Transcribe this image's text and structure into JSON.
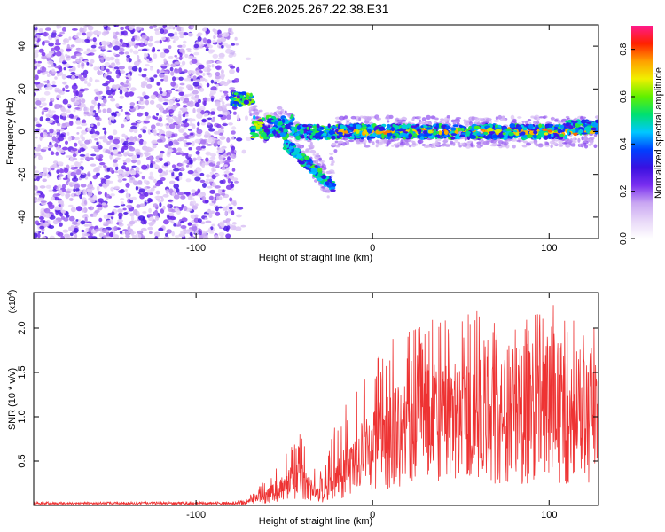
{
  "title": "C2E6.2025.267.22.38.E31",
  "chart_data": [
    {
      "type": "heatmap",
      "title": "C2E6.2025.267.22.38.E31",
      "xlabel": "Height of straight line (km)",
      "ylabel": "Frequency (Hz)",
      "xlim": [
        -192,
        128
      ],
      "ylim": [
        -50,
        50
      ],
      "xticks": [
        -100,
        0,
        100
      ],
      "yticks": [
        -40,
        -20,
        0,
        20,
        40
      ],
      "xtick_labels": [
        "-100",
        "0",
        "100"
      ],
      "ytick_labels": [
        "-40",
        "-20",
        "0",
        "20",
        "40"
      ],
      "noise_region_x": [
        -192,
        -78
      ],
      "signal_ridge": [
        {
          "x": -75,
          "freq": 15
        },
        {
          "x": -62,
          "freq": 2
        },
        {
          "x": -50,
          "freq": 5
        },
        {
          "x": -40,
          "freq": -5
        },
        {
          "x": -33,
          "freq": -15
        },
        {
          "x": -25,
          "freq": -25
        },
        {
          "x": -20,
          "freq": 0
        },
        {
          "x": 0,
          "freq": 0
        },
        {
          "x": 50,
          "freq": 0
        },
        {
          "x": 100,
          "freq": 0
        },
        {
          "x": 128,
          "freq": 3
        }
      ],
      "colorbar": {
        "label": "Normalized spectral amplitude",
        "range": [
          0,
          0.9
        ],
        "ticks": [
          0.0,
          0.2,
          0.4,
          0.6,
          0.8
        ],
        "tick_labels": [
          "0.0",
          "0.2",
          "0.4",
          "0.6",
          "0.8"
        ],
        "colormap": [
          "#ffffff",
          "#e8d8f8",
          "#c9a6f2",
          "#7a2ff0",
          "#3a10e0",
          "#0040ff",
          "#00c8ff",
          "#00e070",
          "#60f000",
          "#f0f000",
          "#ffa000",
          "#ff2000",
          "#ff1a8c"
        ]
      }
    },
    {
      "type": "line",
      "xlabel": "Height of straight line (km)",
      "ylabel": "SNR (10 * v/v)",
      "multiplier_base": "(x10",
      "multiplier_exp": "4",
      "multiplier_close": ")",
      "xlim": [
        -192,
        128
      ],
      "ylim": [
        0,
        2.4
      ],
      "xticks": [
        -100,
        0,
        100
      ],
      "yticks": [
        0.5,
        1.0,
        1.5,
        2.0
      ],
      "xtick_labels": [
        "-100",
        "0",
        "100"
      ],
      "ytick_labels": [
        "0.5",
        "1.0",
        "1.5",
        "2.0"
      ],
      "series": [
        {
          "name": "SNR",
          "color": "#ee3333",
          "envelope": [
            {
              "x": -192,
              "mean": 0.02,
              "peak": 0.04
            },
            {
              "x": -80,
              "mean": 0.02,
              "peak": 0.04
            },
            {
              "x": -70,
              "mean": 0.05,
              "peak": 0.1
            },
            {
              "x": -60,
              "mean": 0.12,
              "peak": 0.3
            },
            {
              "x": -50,
              "mean": 0.25,
              "peak": 0.6
            },
            {
              "x": -40,
              "mean": 0.35,
              "peak": 0.85
            },
            {
              "x": -35,
              "mean": 0.2,
              "peak": 0.6
            },
            {
              "x": -28,
              "mean": 0.1,
              "peak": 0.35
            },
            {
              "x": -20,
              "mean": 0.35,
              "peak": 1.1
            },
            {
              "x": -10,
              "mean": 0.55,
              "peak": 1.25
            },
            {
              "x": 0,
              "mean": 0.75,
              "peak": 1.6
            },
            {
              "x": 10,
              "mean": 0.9,
              "peak": 1.9
            },
            {
              "x": 30,
              "mean": 1.1,
              "peak": 2.1
            },
            {
              "x": 60,
              "mean": 1.2,
              "peak": 2.2
            },
            {
              "x": 80,
              "mean": 1.2,
              "peak": 2.1
            },
            {
              "x": 100,
              "mean": 1.25,
              "peak": 2.3
            },
            {
              "x": 128,
              "mean": 1.15,
              "peak": 2.0
            }
          ]
        }
      ]
    }
  ]
}
